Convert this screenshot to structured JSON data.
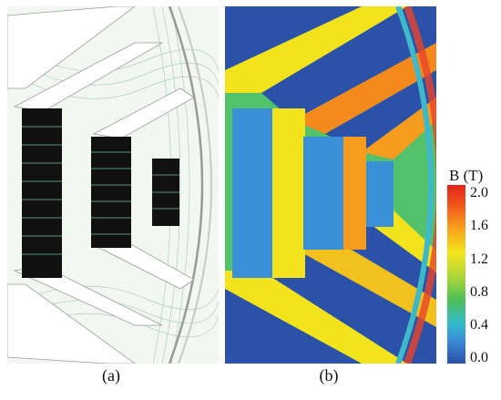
{
  "panels": {
    "a": {
      "caption": "(a)"
    },
    "b": {
      "caption": "(b)"
    }
  },
  "legend": {
    "title": "B (T)",
    "ticks": [
      "2.0",
      "1.6",
      "1.2",
      "0.8",
      "0.4",
      "0.0"
    ],
    "min": 0.0,
    "max": 2.0
  },
  "colors": {
    "b_low": "#2a4fa8",
    "b_mid_low": "#33b9cf",
    "b_mid": "#4fbf54",
    "b_mid_high": "#f3e51c",
    "b_high": "#f05a1a",
    "b_max": "#e3231c",
    "conductor": "#111111",
    "steel_background_a": "#f4f8f4"
  }
}
